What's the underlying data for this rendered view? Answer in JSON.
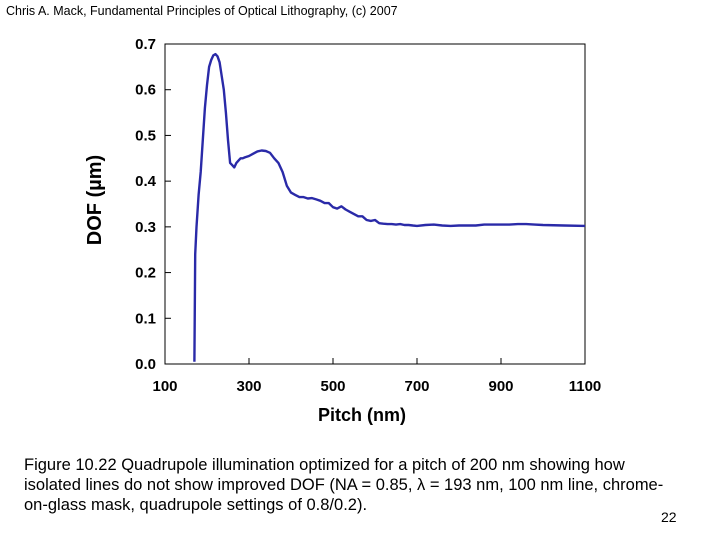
{
  "header": {
    "text": "Chris A. Mack, Fundamental Principles of Optical Lithography, (c) 2007"
  },
  "chart_data": {
    "type": "line",
    "title": "",
    "xlabel": "Pitch (nm)",
    "ylabel": "DOF (µm)",
    "xlim": [
      100,
      1100
    ],
    "ylim": [
      0,
      0.7
    ],
    "xticks": [
      100,
      300,
      500,
      700,
      900,
      1100
    ],
    "xtick_labels": [
      "100",
      "300",
      "500",
      "700",
      "900",
      "1100"
    ],
    "yticks": [
      0,
      0.1,
      0.2,
      0.3,
      0.4,
      0.5,
      0.6,
      0.7
    ],
    "ytick_labels": [
      "0.0",
      "0.1",
      "0.2",
      "0.3",
      "0.4",
      "0.5",
      "0.6",
      "0.7"
    ],
    "grid": false,
    "legend": "none",
    "line_color": "#2a2aa8",
    "series": [
      {
        "x": [
          170,
          172,
          175,
          180,
          185,
          190,
          195,
          200,
          205,
          210,
          215,
          220,
          225,
          230,
          235,
          240,
          245,
          250,
          255,
          260,
          265,
          270,
          275,
          280,
          285,
          290,
          300,
          310,
          320,
          330,
          340,
          350,
          360,
          370,
          380,
          390,
          400,
          410,
          420,
          430,
          440,
          450,
          460,
          470,
          480,
          490,
          500,
          510,
          520,
          530,
          540,
          550,
          560,
          570,
          580,
          590,
          600,
          610,
          620,
          630,
          640,
          650,
          660,
          670,
          680,
          690,
          700,
          720,
          740,
          760,
          780,
          800,
          820,
          840,
          860,
          880,
          900,
          920,
          940,
          960,
          980,
          1000,
          1050,
          1100
        ],
        "y": [
          0.005,
          0.24,
          0.3,
          0.37,
          0.42,
          0.49,
          0.56,
          0.61,
          0.65,
          0.665,
          0.675,
          0.678,
          0.673,
          0.66,
          0.63,
          0.6,
          0.55,
          0.49,
          0.44,
          0.435,
          0.43,
          0.44,
          0.445,
          0.45,
          0.45,
          0.452,
          0.455,
          0.46,
          0.465,
          0.467,
          0.466,
          0.462,
          0.45,
          0.44,
          0.42,
          0.39,
          0.375,
          0.37,
          0.365,
          0.365,
          0.362,
          0.363,
          0.36,
          0.357,
          0.352,
          0.352,
          0.343,
          0.34,
          0.345,
          0.338,
          0.333,
          0.328,
          0.323,
          0.323,
          0.315,
          0.313,
          0.315,
          0.308,
          0.307,
          0.306,
          0.306,
          0.305,
          0.306,
          0.304,
          0.304,
          0.303,
          0.302,
          0.304,
          0.305,
          0.303,
          0.302,
          0.303,
          0.303,
          0.303,
          0.305,
          0.305,
          0.305,
          0.305,
          0.306,
          0.306,
          0.305,
          0.304,
          0.303,
          0.302
        ]
      }
    ]
  },
  "caption": {
    "text": "Figure 10.22  Quadrupole illumination optimized for a pitch of 200 nm showing how isolated lines do not show improved DOF (NA = 0.85, λ = 193 nm, 100 nm line, chrome-on-glass mask, quadrupole settings of 0.8/0.2)."
  },
  "page_number": "22"
}
